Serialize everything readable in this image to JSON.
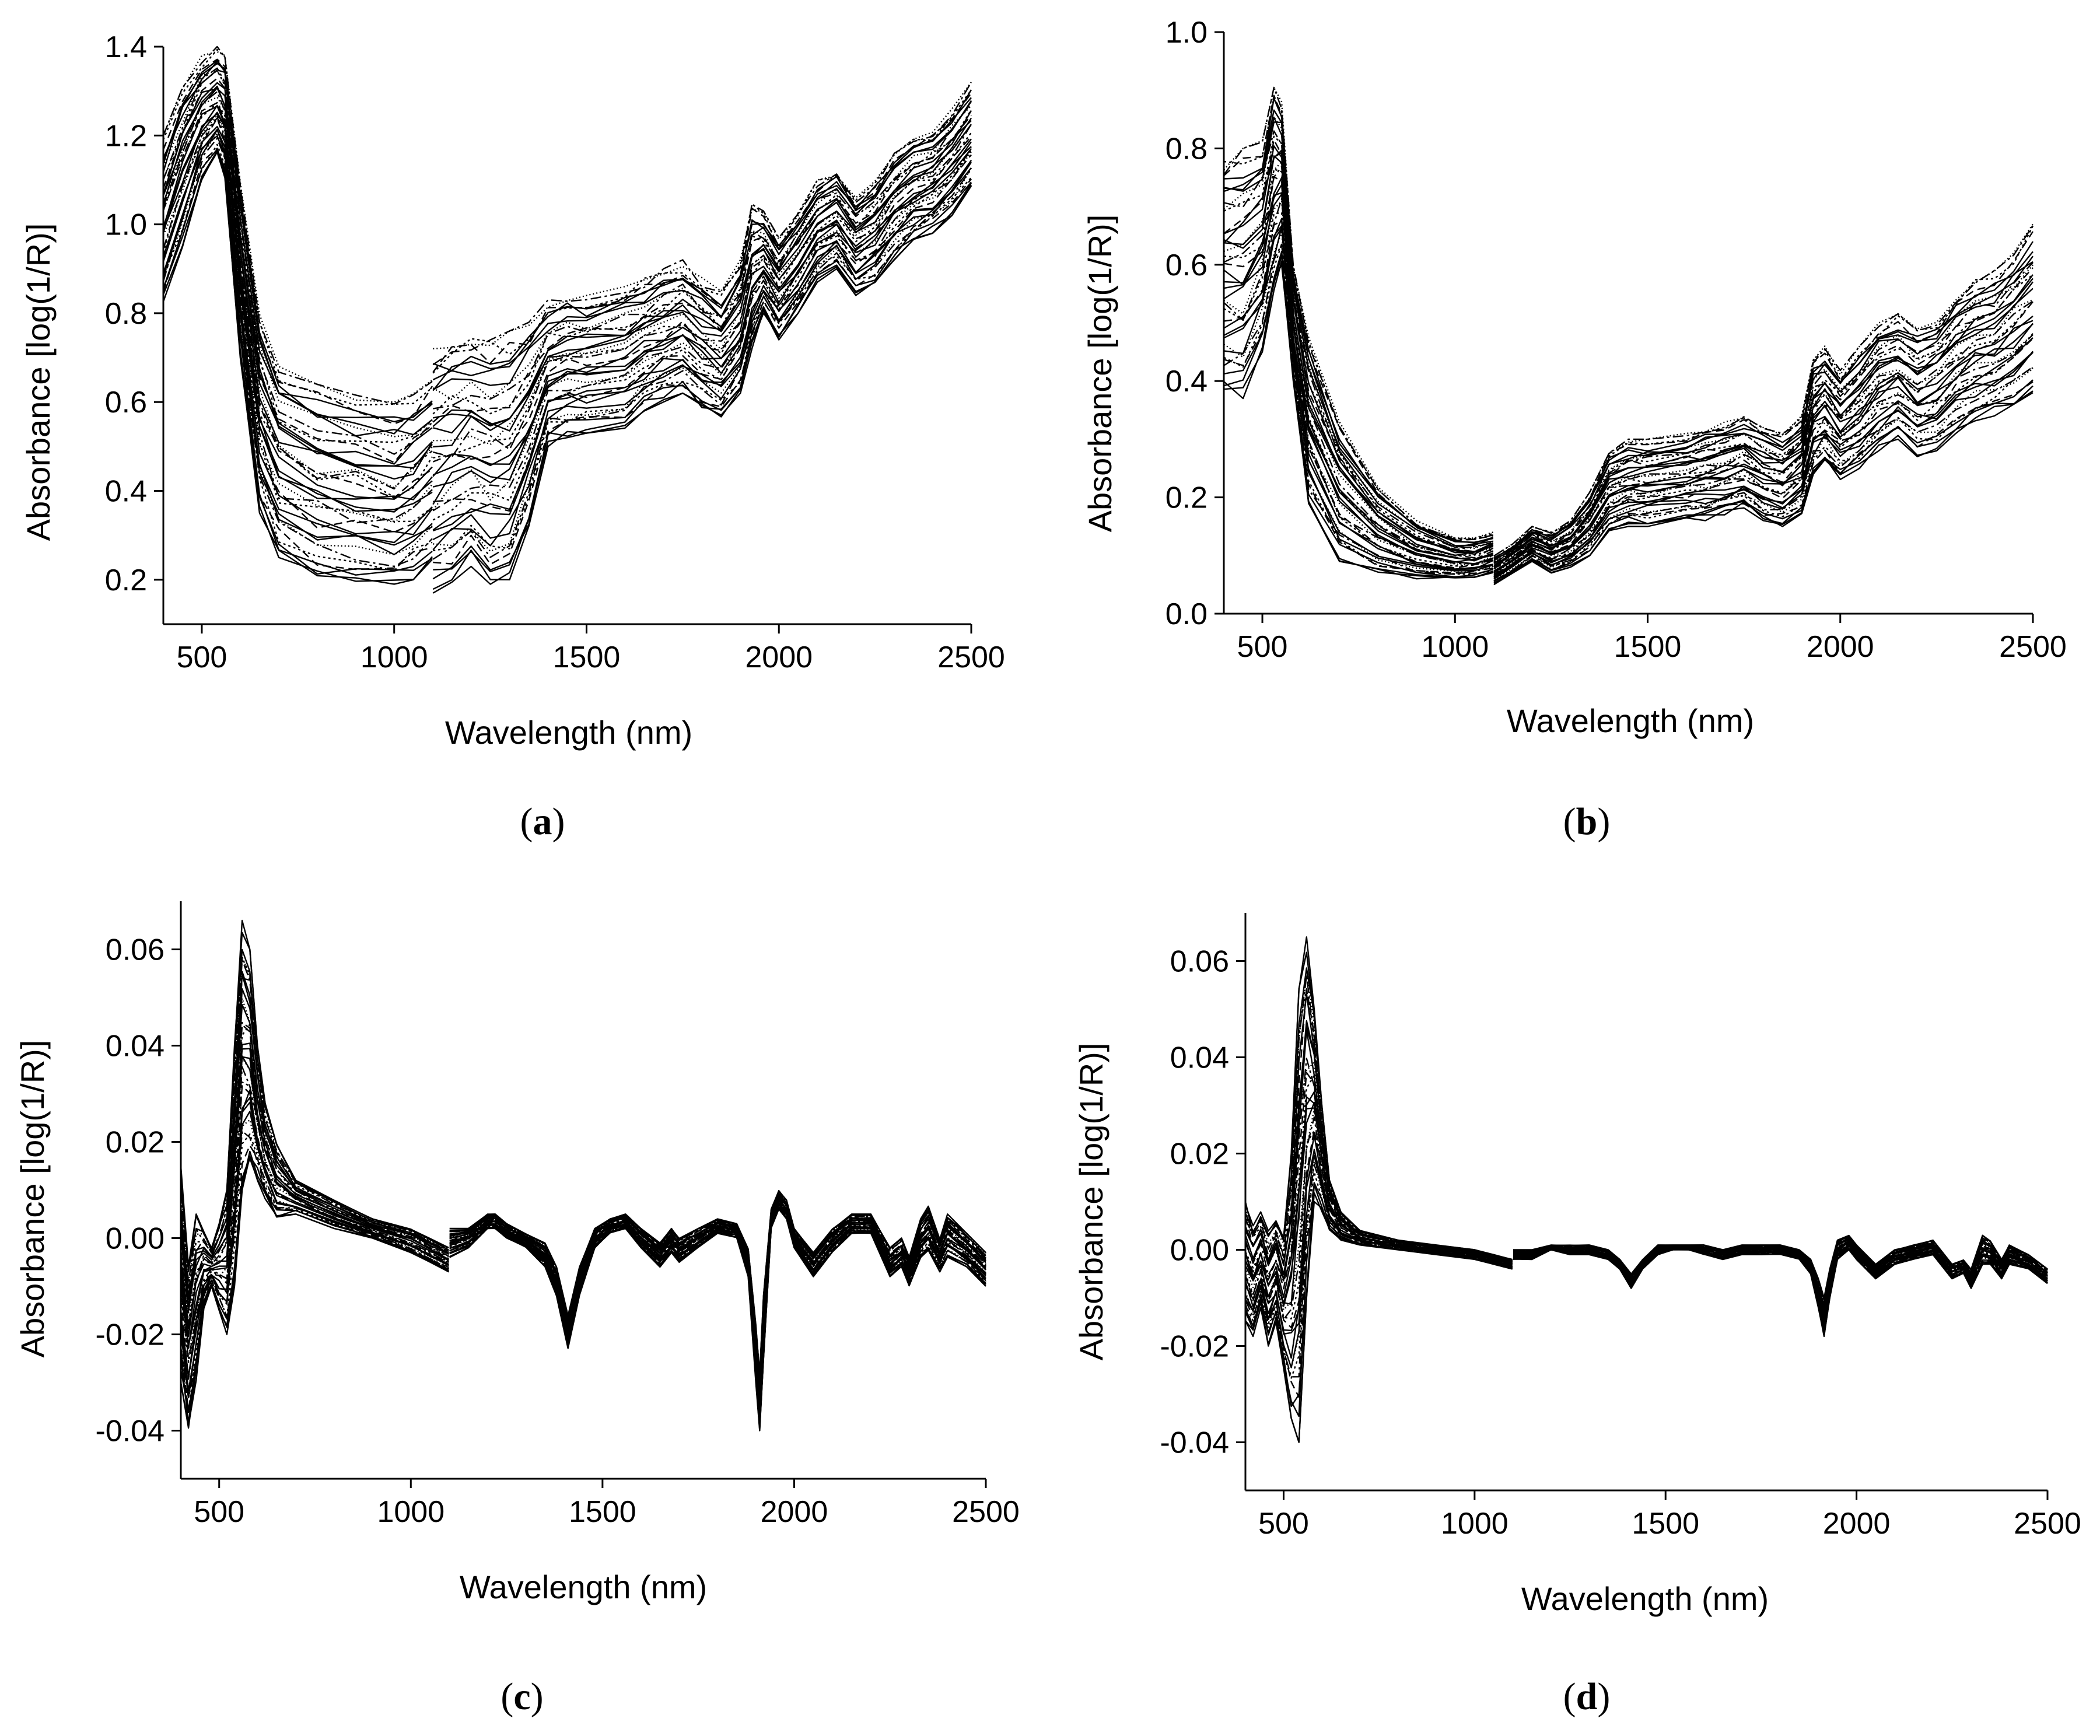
{
  "colors": {
    "line": "#000000",
    "background": "#ffffff"
  },
  "chart_data": [
    {
      "id": "a",
      "type": "line",
      "panel_label_prefix": "(",
      "panel_label_letter": "a",
      "panel_label_suffix": ")",
      "xlabel": "Wavelength (nm)",
      "ylabel": "Absorbance [log(1/R)]",
      "xlim": [
        400,
        2500
      ],
      "ylim": [
        0.1,
        1.4
      ],
      "xticks": [
        500,
        1000,
        1500,
        2000,
        2500
      ],
      "xtick_labels": [
        "500",
        "1000",
        "1500",
        "2000",
        "2500"
      ],
      "yticks": [
        0.2,
        0.4,
        0.6,
        0.8,
        1.0,
        1.2,
        1.4
      ],
      "ytick_labels": [
        "0.2",
        "0.4",
        "0.6",
        "0.8",
        "1.0",
        "1.2",
        "1.4"
      ],
      "series_count": 40,
      "template": {
        "x": [
          400,
          450,
          500,
          540,
          560,
          600,
          650,
          700,
          800,
          900,
          1000,
          1050,
          1099,
          1101,
          1150,
          1200,
          1250,
          1300,
          1350,
          1400,
          1450,
          1500,
          1600,
          1650,
          1700,
          1750,
          1800,
          1850,
          1900,
          1930,
          1960,
          2000,
          2050,
          2100,
          2150,
          2200,
          2250,
          2300,
          2350,
          2400,
          2450,
          2500
        ],
        "low": [
          0.82,
          0.95,
          1.1,
          1.15,
          1.1,
          0.7,
          0.35,
          0.25,
          0.2,
          0.19,
          0.18,
          0.2,
          0.24,
          0.17,
          0.19,
          0.23,
          0.19,
          0.2,
          0.32,
          0.5,
          0.52,
          0.53,
          0.54,
          0.58,
          0.6,
          0.62,
          0.58,
          0.56,
          0.62,
          0.72,
          0.8,
          0.74,
          0.8,
          0.87,
          0.9,
          0.84,
          0.86,
          0.92,
          0.96,
          0.98,
          1.02,
          1.08
        ],
        "high": [
          1.2,
          1.32,
          1.38,
          1.4,
          1.38,
          1.1,
          0.8,
          0.68,
          0.64,
          0.62,
          0.6,
          0.62,
          0.65,
          0.72,
          0.74,
          0.75,
          0.74,
          0.76,
          0.78,
          0.83,
          0.84,
          0.84,
          0.86,
          0.88,
          0.9,
          0.92,
          0.88,
          0.85,
          0.92,
          1.05,
          1.03,
          0.97,
          1.03,
          1.1,
          1.12,
          1.06,
          1.1,
          1.16,
          1.2,
          1.21,
          1.26,
          1.32
        ]
      }
    },
    {
      "id": "b",
      "type": "line",
      "panel_label_prefix": "(",
      "panel_label_letter": "b",
      "panel_label_suffix": ")",
      "xlabel": "Wavelength (nm)",
      "ylabel": "Absorbance [log(1/R)]",
      "xlim": [
        400,
        2500
      ],
      "ylim": [
        0.0,
        1.0
      ],
      "xticks": [
        500,
        1000,
        1500,
        2000,
        2500
      ],
      "xtick_labels": [
        "500",
        "1000",
        "1500",
        "2000",
        "2500"
      ],
      "yticks": [
        0.0,
        0.2,
        0.4,
        0.6,
        0.8,
        1.0
      ],
      "ytick_labels": [
        "0.0",
        "0.2",
        "0.4",
        "0.6",
        "0.8",
        "1.0"
      ],
      "series_count": 40,
      "template": {
        "x": [
          400,
          450,
          500,
          530,
          550,
          580,
          620,
          700,
          800,
          900,
          1000,
          1050,
          1099,
          1101,
          1150,
          1200,
          1250,
          1300,
          1350,
          1400,
          1450,
          1500,
          1600,
          1650,
          1700,
          1750,
          1800,
          1850,
          1900,
          1930,
          1960,
          2000,
          2050,
          2100,
          2150,
          2200,
          2250,
          2300,
          2350,
          2400,
          2450,
          2500
        ],
        "low": [
          0.38,
          0.37,
          0.45,
          0.55,
          0.6,
          0.4,
          0.18,
          0.09,
          0.07,
          0.06,
          0.06,
          0.06,
          0.07,
          0.05,
          0.07,
          0.09,
          0.07,
          0.08,
          0.1,
          0.14,
          0.15,
          0.15,
          0.16,
          0.16,
          0.17,
          0.18,
          0.16,
          0.15,
          0.17,
          0.24,
          0.26,
          0.23,
          0.25,
          0.28,
          0.3,
          0.27,
          0.28,
          0.31,
          0.33,
          0.34,
          0.36,
          0.38
        ],
        "high": [
          0.78,
          0.8,
          0.82,
          0.92,
          0.88,
          0.6,
          0.48,
          0.33,
          0.22,
          0.16,
          0.13,
          0.13,
          0.14,
          0.1,
          0.12,
          0.15,
          0.14,
          0.16,
          0.21,
          0.28,
          0.3,
          0.3,
          0.31,
          0.32,
          0.33,
          0.34,
          0.32,
          0.31,
          0.34,
          0.44,
          0.46,
          0.42,
          0.46,
          0.5,
          0.52,
          0.49,
          0.51,
          0.55,
          0.58,
          0.59,
          0.62,
          0.67
        ]
      }
    },
    {
      "id": "c",
      "type": "line",
      "panel_label_prefix": "(",
      "panel_label_letter": "c",
      "panel_label_suffix": ")",
      "xlabel": "Wavelength (nm)",
      "ylabel": "Absorbance [log(1/R)]",
      "xlim": [
        400,
        2500
      ],
      "ylim": [
        -0.05,
        0.07
      ],
      "xticks": [
        500,
        1000,
        1500,
        2000,
        2500
      ],
      "xtick_labels": [
        "500",
        "1000",
        "1500",
        "2000",
        "2500"
      ],
      "yticks": [
        -0.04,
        -0.02,
        0.0,
        0.02,
        0.04,
        0.06
      ],
      "ytick_labels": [
        "-0.04",
        "-0.02",
        "0.00",
        "0.02",
        "0.04",
        "0.06"
      ],
      "series_count": 35,
      "template": {
        "x": [
          400,
          420,
          440,
          460,
          480,
          500,
          520,
          540,
          560,
          580,
          600,
          620,
          650,
          700,
          800,
          900,
          1000,
          1050,
          1099,
          1101,
          1150,
          1200,
          1220,
          1250,
          1300,
          1350,
          1380,
          1410,
          1440,
          1480,
          1520,
          1560,
          1600,
          1650,
          1680,
          1700,
          1750,
          1800,
          1850,
          1880,
          1900,
          1910,
          1920,
          1940,
          1960,
          1980,
          2000,
          2050,
          2100,
          2150,
          2200,
          2250,
          2280,
          2300,
          2330,
          2350,
          2380,
          2400,
          2450,
          2500
        ],
        "low": [
          -0.03,
          -0.04,
          -0.03,
          -0.015,
          -0.01,
          -0.015,
          -0.02,
          -0.01,
          0.01,
          0.015,
          0.012,
          0.008,
          0.004,
          0.005,
          0.002,
          0.0,
          -0.003,
          -0.005,
          -0.007,
          -0.004,
          -0.002,
          0.002,
          0.002,
          0.0,
          -0.002,
          -0.006,
          -0.012,
          -0.023,
          -0.012,
          -0.002,
          0.001,
          0.002,
          -0.002,
          -0.006,
          -0.003,
          -0.005,
          -0.002,
          0.001,
          0.0,
          -0.008,
          -0.03,
          -0.04,
          -0.025,
          0.002,
          0.006,
          0.004,
          -0.002,
          -0.008,
          -0.003,
          0.001,
          0.001,
          -0.008,
          -0.006,
          -0.01,
          -0.004,
          -0.003,
          -0.007,
          -0.004,
          -0.006,
          -0.01
        ],
        "high": [
          0.015,
          -0.005,
          0.005,
          0.002,
          -0.002,
          0.003,
          0.01,
          0.04,
          0.066,
          0.06,
          0.04,
          0.028,
          0.02,
          0.012,
          0.008,
          0.004,
          0.002,
          0.0,
          -0.002,
          0.002,
          0.002,
          0.005,
          0.005,
          0.003,
          0.001,
          -0.001,
          -0.006,
          -0.016,
          -0.006,
          0.002,
          0.004,
          0.005,
          0.002,
          -0.001,
          0.002,
          0.0,
          0.002,
          0.004,
          0.003,
          -0.002,
          -0.018,
          -0.028,
          -0.012,
          0.006,
          0.01,
          0.008,
          0.002,
          -0.003,
          0.002,
          0.005,
          0.005,
          -0.002,
          0.0,
          -0.004,
          0.004,
          0.007,
          0.0,
          0.005,
          0.001,
          -0.003
        ]
      }
    },
    {
      "id": "d",
      "type": "line",
      "panel_label_prefix": "(",
      "panel_label_letter": "d",
      "panel_label_suffix": ")",
      "xlabel": "Wavelength (nm)",
      "ylabel": "Absorbance [log(1/R)]",
      "xlim": [
        400,
        2500
      ],
      "ylim": [
        -0.05,
        0.07
      ],
      "xticks": [
        500,
        1000,
        1500,
        2000,
        2500
      ],
      "xtick_labels": [
        "500",
        "1000",
        "1500",
        "2000",
        "2500"
      ],
      "yticks": [
        -0.04,
        -0.02,
        0.0,
        0.02,
        0.04,
        0.06
      ],
      "ytick_labels": [
        "-0.04",
        "-0.02",
        "0.00",
        "0.02",
        "0.04",
        "0.06"
      ],
      "series_count": 35,
      "template": {
        "x": [
          400,
          420,
          440,
          460,
          480,
          500,
          520,
          540,
          560,
          580,
          600,
          620,
          650,
          700,
          800,
          900,
          1000,
          1050,
          1099,
          1101,
          1150,
          1200,
          1250,
          1300,
          1350,
          1380,
          1410,
          1440,
          1480,
          1520,
          1560,
          1600,
          1650,
          1700,
          1750,
          1800,
          1850,
          1880,
          1900,
          1915,
          1930,
          1950,
          1980,
          2000,
          2050,
          2100,
          2150,
          2200,
          2250,
          2280,
          2300,
          2330,
          2350,
          2380,
          2400,
          2450,
          2500
        ],
        "low": [
          -0.015,
          -0.018,
          -0.012,
          -0.02,
          -0.015,
          -0.025,
          -0.035,
          -0.04,
          -0.01,
          0.01,
          0.008,
          0.004,
          0.002,
          0.001,
          0.0,
          -0.001,
          -0.002,
          -0.003,
          -0.004,
          -0.002,
          -0.002,
          0.0,
          -0.001,
          -0.001,
          -0.002,
          -0.004,
          -0.008,
          -0.004,
          -0.001,
          0.0,
          0.0,
          -0.001,
          -0.002,
          -0.001,
          -0.001,
          -0.001,
          -0.002,
          -0.005,
          -0.012,
          -0.018,
          -0.01,
          -0.002,
          0.0,
          -0.002,
          -0.006,
          -0.003,
          -0.002,
          -0.001,
          -0.006,
          -0.005,
          -0.008,
          -0.003,
          -0.003,
          -0.006,
          -0.003,
          -0.004,
          -0.007
        ],
        "high": [
          0.01,
          0.005,
          0.008,
          0.004,
          0.006,
          0.003,
          0.02,
          0.055,
          0.065,
          0.05,
          0.03,
          0.015,
          0.008,
          0.004,
          0.002,
          0.001,
          0.0,
          -0.001,
          -0.002,
          0.0,
          0.0,
          0.001,
          0.001,
          0.001,
          0.0,
          -0.002,
          -0.005,
          -0.002,
          0.001,
          0.001,
          0.001,
          0.001,
          0.0,
          0.001,
          0.001,
          0.001,
          0.0,
          -0.002,
          -0.006,
          -0.01,
          -0.004,
          0.002,
          0.003,
          0.001,
          -0.003,
          0.0,
          0.001,
          0.002,
          -0.003,
          -0.002,
          -0.004,
          0.003,
          0.002,
          -0.002,
          0.001,
          -0.001,
          -0.004
        ]
      }
    }
  ]
}
